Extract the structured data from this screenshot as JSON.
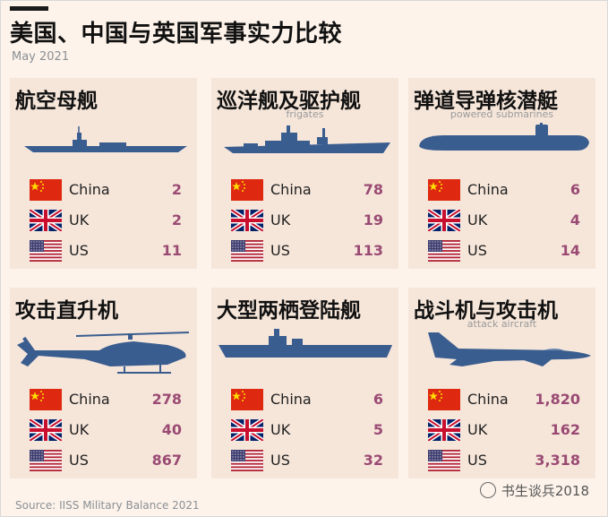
{
  "header": {
    "title": "美国、中国与英国军事实力比较",
    "date": "May 2021"
  },
  "footer": {
    "source": "Source: IISS Military Balance 2021",
    "watermark": "书生谈兵2018"
  },
  "colors": {
    "icon": "#3a5d8f",
    "value": "#9a4a73",
    "panel": "#f6e6da",
    "background": "#fdf3ea"
  },
  "chart_data": {
    "type": "table",
    "title": "美国、中国与英国军事实力比较",
    "countries": [
      "China",
      "UK",
      "US"
    ],
    "panels": [
      {
        "label": "航空母舰",
        "ghost": "",
        "icon": "carrier-icon",
        "values": [
          "2",
          "2",
          "11"
        ]
      },
      {
        "label": "巡洋舰及驱护舰",
        "ghost": "frigates",
        "icon": "destroyer-icon",
        "values": [
          "78",
          "19",
          "113"
        ]
      },
      {
        "label": "弹道导弹核潜艇",
        "ghost": "powered submarines",
        "icon": "submarine-icon",
        "values": [
          "6",
          "4",
          "14"
        ]
      },
      {
        "label": "攻击直升机",
        "ghost": "",
        "icon": "helicopter-icon",
        "values": [
          "278",
          "40",
          "867"
        ]
      },
      {
        "label": "大型两栖登陆舰",
        "ghost": "",
        "icon": "amphibious-ship-icon",
        "values": [
          "6",
          "5",
          "32"
        ]
      },
      {
        "label": "战斗机与攻击机",
        "ghost": "attack aircraft",
        "icon": "fighter-jet-icon",
        "values": [
          "1,820",
          "162",
          "3,318"
        ]
      }
    ]
  }
}
